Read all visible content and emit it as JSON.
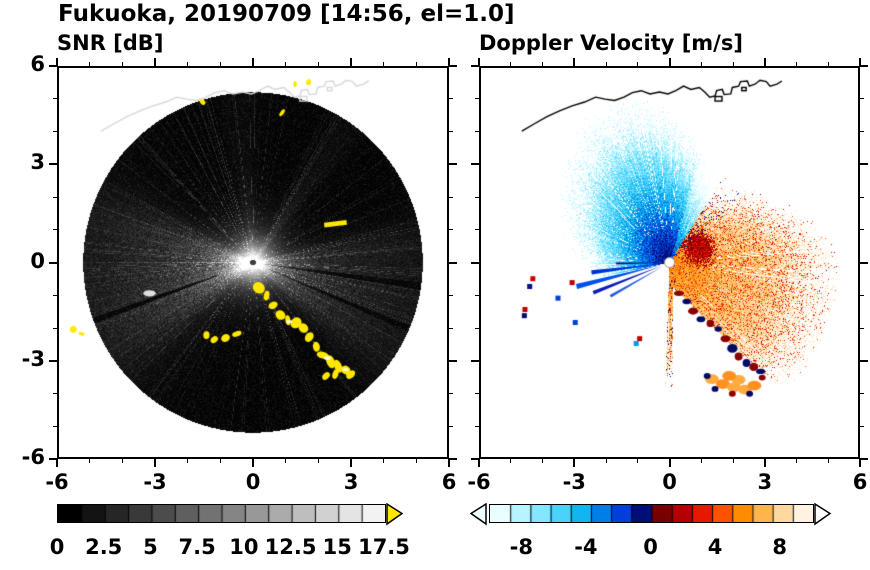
{
  "header": {
    "title": "Fukuoka, 20190709 [14:56, el=1.0]"
  },
  "panels": {
    "snr": {
      "title": "SNR [dB]"
    },
    "doppler": {
      "title": "Doppler Velocity [m/s]"
    }
  },
  "chart_data": [
    {
      "type": "heatmap",
      "title": "SNR [dB]",
      "station": "Fukuoka",
      "date": "20190709",
      "time": "14:56",
      "elevation": "1.0",
      "xlim": [
        -6,
        6
      ],
      "ylim": [
        -6,
        6
      ],
      "xtick_values": [
        -6,
        -3,
        0,
        3,
        6
      ],
      "xtick_labels": [
        "-6",
        "-3",
        "0",
        "3",
        "6"
      ],
      "ytick_values": [
        6,
        3,
        0,
        -3,
        -6
      ],
      "ytick_labels": [
        "6",
        "3",
        "0",
        "-3",
        "-6"
      ],
      "scan_radius": 5.25,
      "colorbar": {
        "range": [
          0,
          17.5
        ],
        "tick_values": [
          0,
          2.5,
          5,
          7.5,
          10,
          12.5,
          15,
          17.5
        ],
        "tick_labels": [
          "0",
          "2.5",
          "5",
          "7.5",
          "10",
          "12.5",
          "15",
          "17.5"
        ],
        "colors": [
          "#000000",
          "#131313",
          "#262626",
          "#393939",
          "#4c4c4c",
          "#5f5f5f",
          "#727272",
          "#858585",
          "#989898",
          "#ababab",
          "#bebebe",
          "#d1d1d1",
          "#e4e4e4",
          "#f2f2f2"
        ],
        "over_color": "#ffe800"
      },
      "content": "Radar PPI scan: dark speckled disk of radius about 5.25, bright white center, light-gray radial beams toward the west and east-southeast with narrow shadow rays, yellow high-SNR ground-clutter arc along the southern coastline plus isolated yellow echoes, pale coastline trace near the top"
    },
    {
      "type": "heatmap",
      "title": "Doppler Velocity [m/s]",
      "station": "Fukuoka",
      "date": "20190709",
      "time": "14:56",
      "elevation": "1.0",
      "xlim": [
        -6,
        6
      ],
      "ylim": [
        -6,
        6
      ],
      "xtick_values": [
        -6,
        -3,
        0,
        3,
        6
      ],
      "xtick_labels": [
        "-6",
        "-3",
        "0",
        "3",
        "6"
      ],
      "ytick_values": [
        6,
        3,
        0,
        -3,
        -6
      ],
      "ytick_labels": [
        "6",
        "3",
        "0",
        "-3",
        "-6"
      ],
      "scan_radius": 5.25,
      "colorbar": {
        "range": [
          -10,
          10
        ],
        "tick_values": [
          -8,
          -4,
          0,
          4,
          8
        ],
        "tick_labels": [
          "-8",
          "-4",
          "0",
          "4",
          "8"
        ],
        "colors": [
          "#e8feff",
          "#b8f4ff",
          "#84e6ff",
          "#4cd2fa",
          "#14b4f0",
          "#007ee8",
          "#0040d8",
          "#000e78",
          "#780000",
          "#b40000",
          "#e81800",
          "#ff5200",
          "#ff8c00",
          "#ffb44c",
          "#ffd8a0",
          "#fff2e0"
        ],
        "under_color": "#f0ffff",
        "over_color": "#ffffff"
      },
      "content": "Radar PPI Doppler velocity: approaching flow (cyan to navy) in a fan north through west of center with thin blue spikes pointing west, receding flow (dark red to pale orange) in a fan east through south-southeast, navy and dark-red clutter along the southern coastline arc, black coastline trace near the top, white background where no echo"
    }
  ]
}
